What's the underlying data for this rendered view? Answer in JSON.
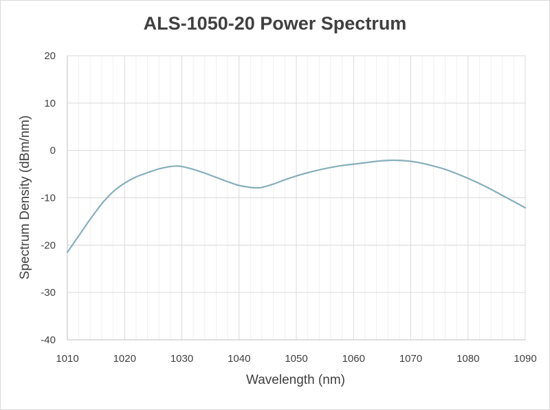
{
  "chart_data": {
    "type": "line",
    "title": "ALS-1050-20 Power Spectrum",
    "xlabel": "Wavelength (nm)",
    "ylabel": "Spectrum Density (dBm/nm)",
    "xlim": [
      1010,
      1090
    ],
    "ylim": [
      -40,
      20
    ],
    "x_ticks": [
      "1010",
      "1020",
      "1030",
      "1040",
      "1050",
      "1060",
      "1070",
      "1080",
      "1090"
    ],
    "y_ticks": [
      "20",
      "10",
      "0",
      "-10",
      "-20",
      "-30",
      "-40"
    ],
    "grid": true,
    "legend": "none",
    "series": [
      {
        "color": "#86aebc",
        "x": [
          1010,
          1012,
          1014,
          1016,
          1018,
          1020,
          1022,
          1024,
          1026,
          1028,
          1029,
          1030,
          1032,
          1034,
          1036,
          1038,
          1040,
          1042,
          1043,
          1044,
          1046,
          1048,
          1050,
          1052,
          1054,
          1056,
          1058,
          1060,
          1062,
          1064,
          1066,
          1068,
          1070,
          1072,
          1074,
          1076,
          1078,
          1080,
          1082,
          1084,
          1086,
          1088,
          1090
        ],
        "y": [
          -21.5,
          -18.0,
          -14.5,
          -11.3,
          -8.7,
          -6.9,
          -5.6,
          -4.7,
          -3.9,
          -3.4,
          -3.3,
          -3.4,
          -4.0,
          -4.8,
          -5.7,
          -6.6,
          -7.4,
          -7.8,
          -7.9,
          -7.8,
          -7.1,
          -6.2,
          -5.4,
          -4.7,
          -4.1,
          -3.6,
          -3.2,
          -2.9,
          -2.6,
          -2.3,
          -2.1,
          -2.1,
          -2.3,
          -2.7,
          -3.3,
          -4.0,
          -4.9,
          -5.9,
          -7.0,
          -8.2,
          -9.5,
          -10.8,
          -12.1
        ]
      }
    ]
  }
}
